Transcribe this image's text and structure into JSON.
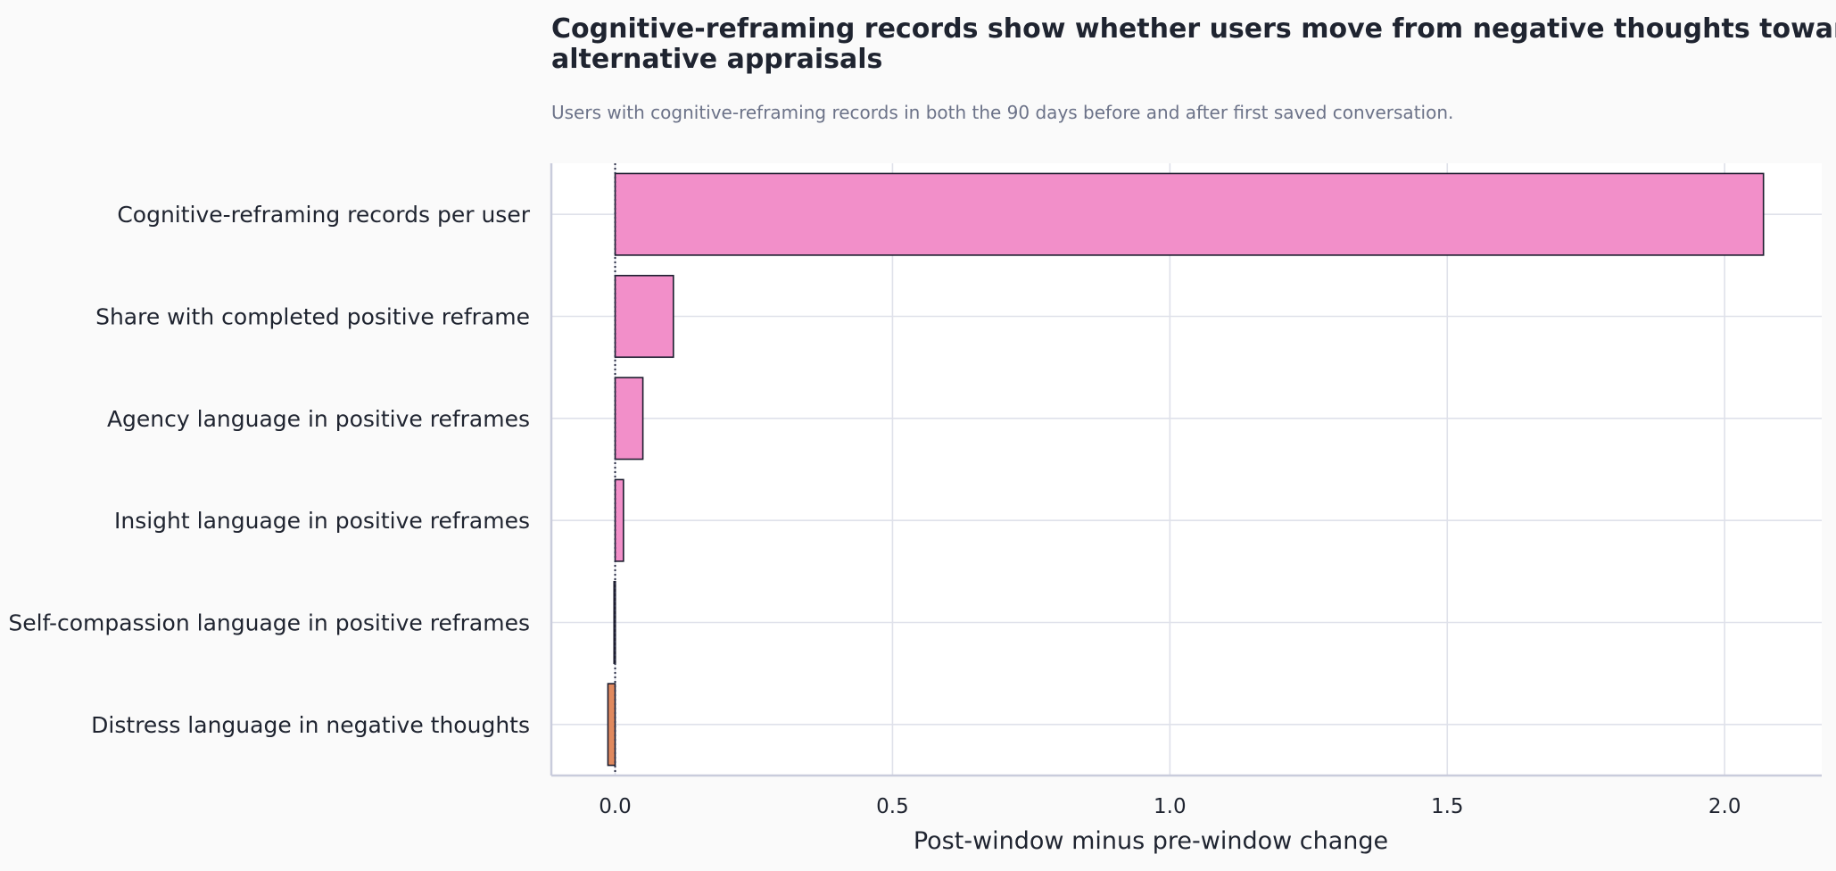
{
  "chart_data": {
    "type": "bar",
    "orientation": "horizontal",
    "title_lines": [
      "Cognitive-reframing records show whether users move from negative thoughts toward",
      "alternative appraisals"
    ],
    "subtitle": "Users with cognitive-reframing records in both the 90 days before and after first saved conversation.",
    "xlabel": "Post-window minus pre-window change",
    "ylabel": "",
    "categories": [
      "Cognitive-reframing records per user",
      "Share with completed positive reframe",
      "Agency language in positive reframes",
      "Insight language in positive reframes",
      "Self-compassion language in positive reframes",
      "Distress language in negative thoughts"
    ],
    "values": [
      2.07,
      0.105,
      0.05,
      0.015,
      -0.002,
      -0.013
    ],
    "xlim": [
      -0.115,
      2.175
    ],
    "xticks": [
      0.0,
      0.5,
      1.0,
      1.5,
      2.0
    ],
    "xtick_labels": [
      "0.0",
      "0.5",
      "1.0",
      "1.5",
      "2.0"
    ],
    "grid": true,
    "reference_line": 0,
    "colors": {
      "positive": "#f28fc9",
      "negative": "#e0895e",
      "bar_edge": "#1c1c2e",
      "grid": "#dfe1ea",
      "axis": "#c9ccdc",
      "plot_bg": "#ffffff",
      "page_bg": "#fafafa"
    }
  }
}
